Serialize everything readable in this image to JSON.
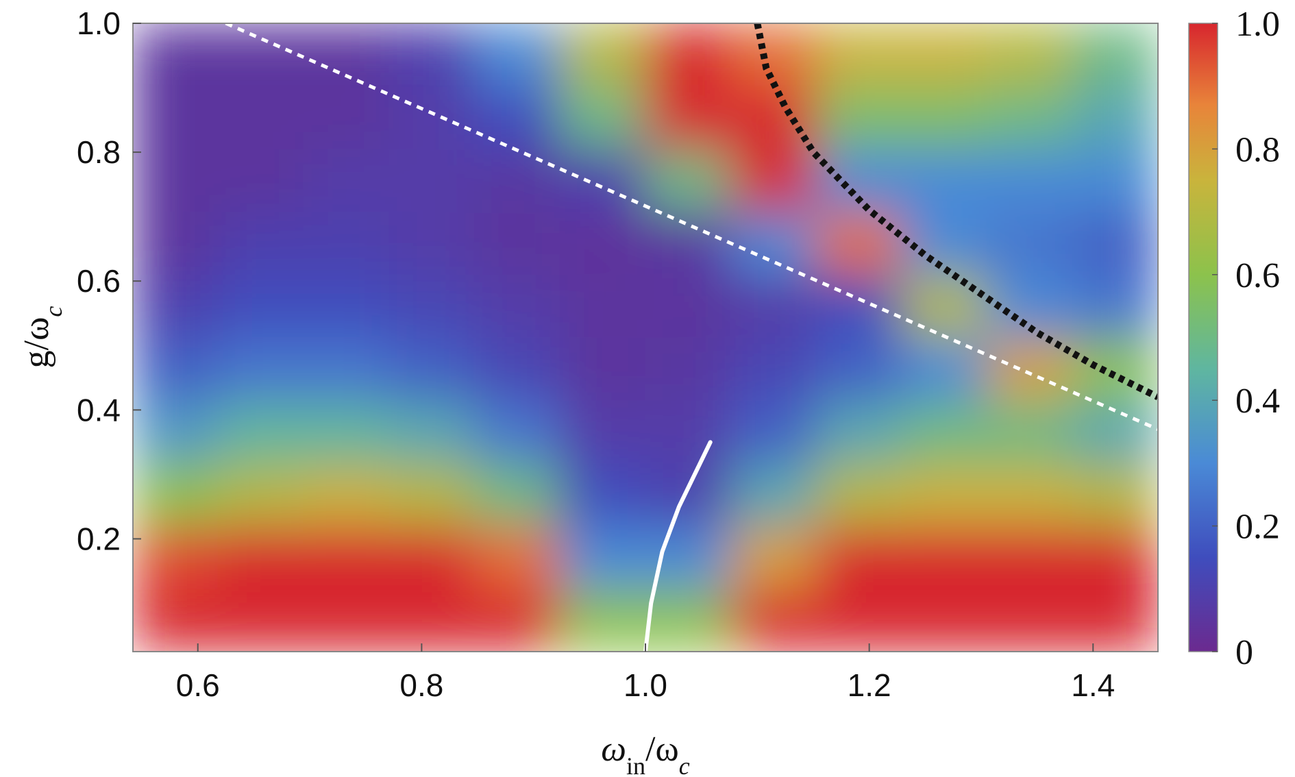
{
  "chart_data": {
    "type": "heatmap",
    "xlabel": [
      {
        "text": "ω"
      },
      {
        "text": "in",
        "sub": true
      },
      {
        "text": "/ω"
      },
      {
        "text": "c",
        "sub": true
      }
    ],
    "ylabel": [
      {
        "text": "g/ω"
      },
      {
        "text": "c",
        "sub": true
      }
    ],
    "xlim": [
      0.542,
      1.458
    ],
    "ylim": [
      0.025,
      1.0
    ],
    "xticks": [
      0.6,
      0.8,
      {
        "value": 1,
        "label": "1.0"
      },
      1.2,
      1.4
    ],
    "yticks": [
      0.2,
      0.4,
      0.6,
      0.8,
      {
        "value": 1,
        "label": "1.0"
      }
    ],
    "x": [
      0.58,
      0.656,
      0.733,
      0.809,
      0.885,
      0.962,
      1.038,
      1.114,
      1.191,
      1.267,
      1.343,
      1.42
    ],
    "y": [
      0.074,
      0.171,
      0.269,
      0.366,
      0.464,
      0.561,
      0.659,
      0.756,
      0.854,
      0.951
    ],
    "z": [
      [
        1,
        1,
        1,
        1,
        1,
        0.6,
        0.6,
        1,
        1,
        1,
        1,
        1
      ],
      [
        0.95,
        1,
        1,
        1,
        0.9,
        0.3,
        0.3,
        0.8,
        1,
        1,
        1,
        1
      ],
      [
        0.6,
        0.7,
        0.75,
        0.7,
        0.5,
        0.15,
        0.1,
        0.4,
        0.7,
        0.75,
        0.75,
        0.7
      ],
      [
        0.35,
        0.45,
        0.45,
        0.4,
        0.25,
        0.08,
        0.08,
        0.2,
        0.4,
        0.5,
        0.5,
        0.4
      ],
      [
        0.2,
        0.25,
        0.25,
        0.2,
        0.12,
        0.05,
        0.06,
        0.12,
        0.2,
        0.3,
        0.8,
        0.6
      ],
      [
        0.1,
        0.15,
        0.15,
        0.12,
        0.08,
        0.05,
        0.05,
        0.08,
        0.15,
        0.7,
        0.3,
        0.25
      ],
      [
        0.05,
        0.1,
        0.1,
        0.08,
        0.05,
        0.04,
        0.06,
        0.3,
        0.9,
        0.3,
        0.25,
        0.2
      ],
      [
        0.05,
        0.05,
        0.08,
        0.08,
        0.06,
        0.1,
        0.5,
        1,
        0.3,
        0.3,
        0.3,
        0.3
      ],
      [
        0.05,
        0.05,
        0.05,
        0.08,
        0.15,
        0.5,
        1,
        1,
        0.55,
        0.55,
        0.5,
        0.4
      ],
      [
        0.05,
        0.05,
        0.05,
        0.1,
        0.3,
        0.7,
        1,
        0.9,
        0.75,
        0.75,
        0.7,
        0.5
      ]
    ],
    "clim": [
      0,
      1
    ],
    "cticks": [
      0,
      0.2,
      0.4,
      0.6,
      0.8,
      {
        "value": 1,
        "label": "1.0"
      }
    ],
    "colormap": [
      [
        0,
        "#6b2a8f"
      ],
      [
        0.15,
        "#3f4dbd"
      ],
      [
        0.3,
        "#4a8ad6"
      ],
      [
        0.45,
        "#5fb6a0"
      ],
      [
        0.6,
        "#8cc24c"
      ],
      [
        0.75,
        "#c9b43c"
      ],
      [
        0.87,
        "#e8843a"
      ],
      [
        1,
        "#d7262e"
      ]
    ],
    "lines": [
      {
        "x": [
          0.625,
          1.458
        ],
        "values": [
          1.0,
          0.37
        ],
        "color": "#ffffff",
        "style": "dashed"
      },
      {
        "x": [
          1.1,
          1.108,
          1.125,
          1.15,
          1.2,
          1.25,
          1.3,
          1.35,
          1.4,
          1.458
        ],
        "values": [
          1.0,
          0.93,
          0.87,
          0.8,
          0.71,
          0.64,
          0.58,
          0.52,
          0.47,
          0.42
        ],
        "color": "#111111",
        "style": "dotted"
      },
      {
        "x": [
          1.0,
          1.005,
          1.015,
          1.03,
          1.058
        ],
        "values": [
          0.025,
          0.1,
          0.18,
          0.25,
          0.35
        ],
        "color": "#ffffff",
        "style": "solid"
      }
    ]
  }
}
